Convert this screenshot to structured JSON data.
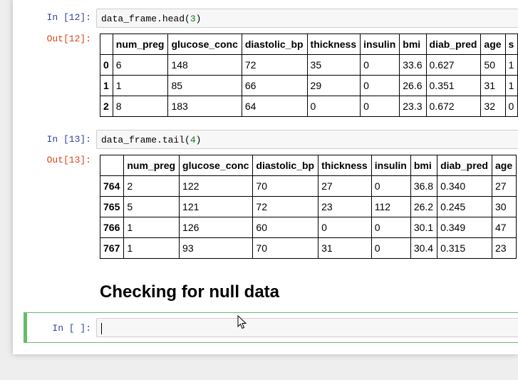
{
  "cells": [
    {
      "prompt": "In [12]:",
      "code": [
        "data_frame.head(",
        "3",
        ")"
      ],
      "output_prompt": "Out[12]:",
      "table": {
        "columns": [
          "num_preg",
          "glucose_conc",
          "diastolic_bp",
          "thickness",
          "insulin",
          "bmi",
          "diab_pred",
          "age",
          "s"
        ],
        "rows": [
          [
            "0",
            "6",
            "148",
            "72",
            "35",
            "0",
            "33.6",
            "0.627",
            "50",
            "1"
          ],
          [
            "1",
            "1",
            "85",
            "66",
            "29",
            "0",
            "26.6",
            "0.351",
            "31",
            "1"
          ],
          [
            "2",
            "8",
            "183",
            "64",
            "0",
            "0",
            "23.3",
            "0.672",
            "32",
            "0"
          ]
        ]
      }
    },
    {
      "prompt": "In [13]:",
      "code": [
        "data_frame.tail(",
        "4",
        ")"
      ],
      "output_prompt": "Out[13]:",
      "table": {
        "columns": [
          "num_preg",
          "glucose_conc",
          "diastolic_bp",
          "thickness",
          "insulin",
          "bmi",
          "diab_pred",
          "age"
        ],
        "rows": [
          [
            "764",
            "2",
            "122",
            "70",
            "27",
            "0",
            "36.8",
            "0.340",
            "27"
          ],
          [
            "765",
            "5",
            "121",
            "72",
            "23",
            "112",
            "26.2",
            "0.245",
            "30"
          ],
          [
            "766",
            "1",
            "126",
            "60",
            "0",
            "0",
            "30.1",
            "0.349",
            "47"
          ],
          [
            "767",
            "1",
            "93",
            "70",
            "31",
            "0",
            "30.4",
            "0.315",
            "23"
          ]
        ]
      }
    }
  ],
  "heading": "Checking for null data",
  "empty_cell": {
    "prompt": "In [ ]:"
  }
}
